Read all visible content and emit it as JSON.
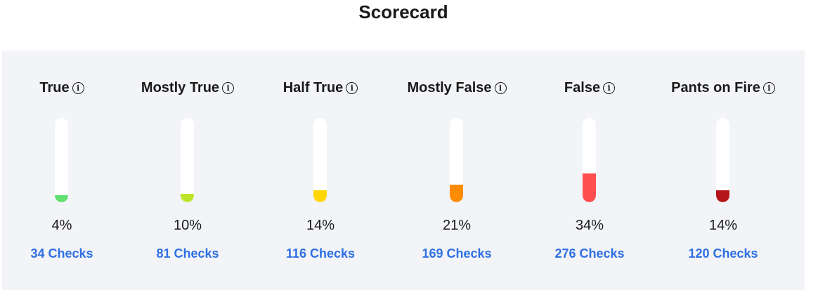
{
  "title": "Scorecard",
  "ratings": [
    {
      "label": "True",
      "percent": 4,
      "percent_text": "4%",
      "checks": "34 Checks",
      "color": "#5fe070"
    },
    {
      "label": "Mostly True",
      "percent": 10,
      "percent_text": "10%",
      "checks": "81 Checks",
      "color": "#bde62b"
    },
    {
      "label": "Half True",
      "percent": 14,
      "percent_text": "14%",
      "checks": "116 Checks",
      "color": "#ffd600"
    },
    {
      "label": "Mostly False",
      "percent": 21,
      "percent_text": "21%",
      "checks": "169 Checks",
      "color": "#ff8c00"
    },
    {
      "label": "False",
      "percent": 34,
      "percent_text": "34%",
      "checks": "276 Checks",
      "color": "#ff4f4f"
    },
    {
      "label": "Pants on Fire",
      "percent": 14,
      "percent_text": "14%",
      "checks": "120 Checks",
      "color": "#b5161b"
    }
  ]
}
